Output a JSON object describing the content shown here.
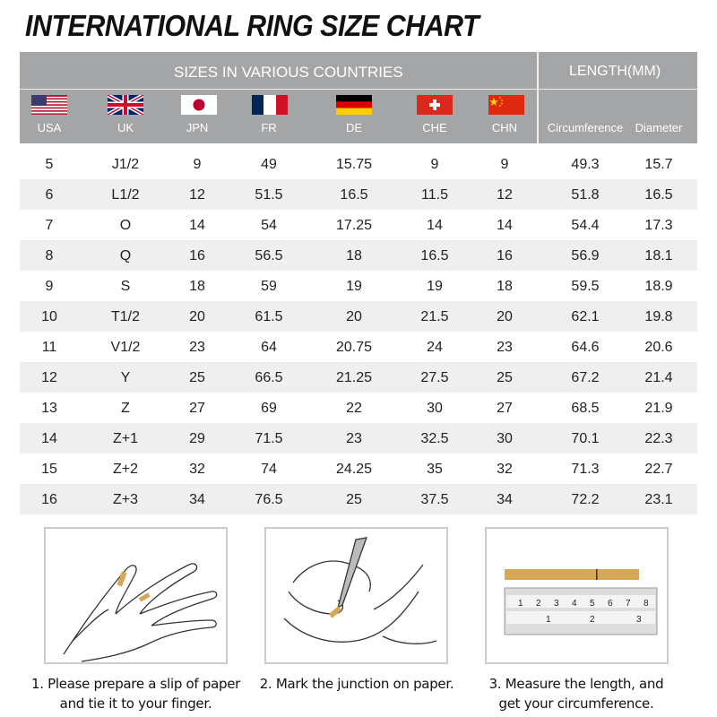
{
  "title": "INTERNATIONAL RING SIZE CHART",
  "header": {
    "group1": "SIZES IN VARIOUS COUNTRIES",
    "group2": "LENGTH(MM)",
    "columns": [
      "USA",
      "UK",
      "JPN",
      "FR",
      "DE",
      "CHE",
      "CHN",
      "Circumference",
      "Diameter"
    ],
    "flags": [
      "usa-flag",
      "uk-flag",
      "japan-flag",
      "france-flag",
      "germany-flag",
      "switzerland-flag",
      "china-flag"
    ]
  },
  "rows": [
    [
      "5",
      "J1/2",
      "9",
      "49",
      "15.75",
      "9",
      "9",
      "49.3",
      "15.7"
    ],
    [
      "6",
      "L1/2",
      "12",
      "51.5",
      "16.5",
      "11.5",
      "12",
      "51.8",
      "16.5"
    ],
    [
      "7",
      "O",
      "14",
      "54",
      "17.25",
      "14",
      "14",
      "54.4",
      "17.3"
    ],
    [
      "8",
      "Q",
      "16",
      "56.5",
      "18",
      "16.5",
      "16",
      "56.9",
      "18.1"
    ],
    [
      "9",
      "S",
      "18",
      "59",
      "19",
      "19",
      "18",
      "59.5",
      "18.9"
    ],
    [
      "10",
      "T1/2",
      "20",
      "61.5",
      "20",
      "21.5",
      "20",
      "62.1",
      "19.8"
    ],
    [
      "11",
      "V1/2",
      "23",
      "64",
      "20.75",
      "24",
      "23",
      "64.6",
      "20.6"
    ],
    [
      "12",
      "Y",
      "25",
      "66.5",
      "21.25",
      "27.5",
      "25",
      "67.2",
      "21.4"
    ],
    [
      "13",
      "Z",
      "27",
      "69",
      "22",
      "30",
      "27",
      "68.5",
      "21.9"
    ],
    [
      "14",
      "Z+1",
      "29",
      "71.5",
      "23",
      "32.5",
      "30",
      "70.1",
      "22.3"
    ],
    [
      "15",
      "Z+2",
      "32",
      "74",
      "24.25",
      "35",
      "32",
      "71.3",
      "22.7"
    ],
    [
      "16",
      "Z+3",
      "34",
      "76.5",
      "25",
      "37.5",
      "34",
      "72.2",
      "23.1"
    ]
  ],
  "steps": [
    {
      "line1": "1. Please prepare a slip of paper",
      "line2": "and tie it to your finger."
    },
    {
      "line1": "2. Mark the junction on paper.",
      "line2": ""
    },
    {
      "line1": "3. Measure the length, and",
      "line2": "get your circumference."
    }
  ],
  "colors": {
    "header_bg": "#a4a5a7",
    "stripe": "#efefef",
    "paper": "#d4a857"
  }
}
